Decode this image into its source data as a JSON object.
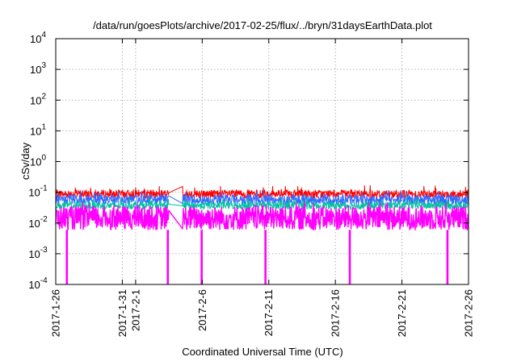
{
  "chart_data": {
    "type": "line",
    "title": "/data/run/goesPlots/archive/2017-02-25/flux/../bryn/31daysEarthData.plot",
    "xlabel": "Coordinated Universal Time (UTC)",
    "ylabel": "cSv/day",
    "yscale": "log",
    "ylim": [
      0.0001,
      10000
    ],
    "xlim": [
      "2017-01-26",
      "2017-02-26"
    ],
    "grid": true,
    "x_ticks": [
      "2017-1-26",
      "2017-1-31",
      "2017-2-1",
      "2017-2-6",
      "2017-2-11",
      "2017-2-16",
      "2017-2-21",
      "2017-2-26"
    ],
    "y_ticks": [
      {
        "base": "10",
        "exp": "-4"
      },
      {
        "base": "10",
        "exp": "-3"
      },
      {
        "base": "10",
        "exp": "-2"
      },
      {
        "base": "10",
        "exp": "-1"
      },
      {
        "base": "10",
        "exp": "0"
      },
      {
        "base": "10",
        "exp": "1"
      },
      {
        "base": "10",
        "exp": "2"
      },
      {
        "base": "10",
        "exp": "3"
      },
      {
        "base": "10",
        "exp": "4"
      }
    ],
    "data_gap": [
      "2017-02-03T12:00",
      "2017-02-04T12:00"
    ],
    "series": [
      {
        "color": "#ff0000",
        "mean": 0.085,
        "low": 0.065,
        "high": 0.12
      },
      {
        "color": "#3366ff",
        "mean": 0.06,
        "low": 0.04,
        "high": 0.085
      },
      {
        "color": "#00c0a0",
        "mean": 0.038,
        "low": 0.028,
        "high": 0.05
      },
      {
        "color": "#ff00ff",
        "mean": 0.014,
        "low": 0.006,
        "high": 0.035
      }
    ],
    "dropouts": [
      {
        "date": "2017-01-26T20:00",
        "value": 0.0001
      },
      {
        "date": "2017-02-03T10:00",
        "value": 0.0001
      },
      {
        "date": "2017-02-05T23:00",
        "value": 0.0001
      },
      {
        "date": "2017-02-10T18:00",
        "value": 0.0001
      },
      {
        "date": "2017-02-17T02:00",
        "value": 0.0001
      },
      {
        "date": "2017-02-24T10:00",
        "value": 0.0001
      }
    ]
  }
}
